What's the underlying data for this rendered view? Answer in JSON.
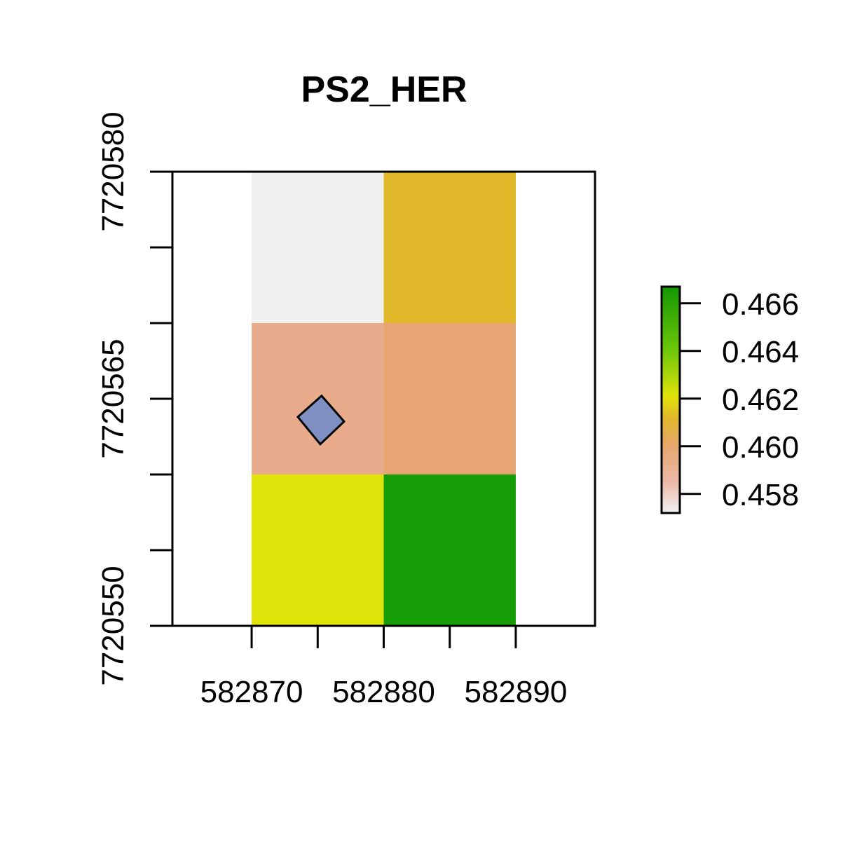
{
  "chart_data": {
    "type": "heatmap",
    "title": "PS2_HER",
    "xlabel": "",
    "ylabel": "",
    "xlim": [
      582864,
      582896
    ],
    "ylim": [
      7720550,
      7720580
    ],
    "x_ticks": [
      582870,
      582875,
      582880,
      582885,
      582890
    ],
    "x_tick_labels": [
      "582870",
      "582880",
      "582890"
    ],
    "x_tick_labels_at": [
      582870,
      582880,
      582890
    ],
    "y_ticks": [
      7720550,
      7720555,
      7720560,
      7720565,
      7720570,
      7720575,
      7720580
    ],
    "y_tick_labels": [
      "7720550",
      "7720565",
      "7720580"
    ],
    "y_tick_labels_at": [
      7720550,
      7720565,
      7720580
    ],
    "grid": false,
    "cells": [
      {
        "x0": 582870,
        "x1": 582880,
        "y0": 7720570,
        "y1": 7720580,
        "value": 0.4573,
        "color": "#EFEFEF"
      },
      {
        "x0": 582880,
        "x1": 582890,
        "y0": 7720570,
        "y1": 7720580,
        "value": 0.4613,
        "color": "#E0B82A"
      },
      {
        "x0": 582870,
        "x1": 582880,
        "y0": 7720560,
        "y1": 7720570,
        "value": 0.4588,
        "color": "#E8AB8C"
      },
      {
        "x0": 582880,
        "x1": 582890,
        "y0": 7720560,
        "y1": 7720570,
        "value": 0.4598,
        "color": "#E6A572"
      },
      {
        "x0": 582870,
        "x1": 582880,
        "y0": 7720550,
        "y1": 7720560,
        "value": 0.4621,
        "color": "#E0E30A"
      },
      {
        "x0": 582880,
        "x1": 582890,
        "y0": 7720550,
        "y1": 7720560,
        "value": 0.4664,
        "color": "#169C04"
      }
    ],
    "polygon": {
      "fill": "#7F8FC1",
      "points": [
        [
          582875.3,
          7720565.2
        ],
        [
          582877.0,
          7720563.5
        ],
        [
          582875.2,
          7720562.0
        ],
        [
          582873.5,
          7720563.8
        ]
      ]
    },
    "legend": {
      "placement": "right",
      "range": [
        0.4572,
        0.4667
      ],
      "ticks": [
        0.458,
        0.46,
        0.462,
        0.464,
        0.466
      ],
      "tick_labels": [
        "0.458",
        "0.460",
        "0.462",
        "0.464",
        "0.466"
      ],
      "gradient_stops": [
        {
          "value": 0.4572,
          "color": "#F2F2F2"
        },
        {
          "value": 0.4585,
          "color": "#EBB9A8"
        },
        {
          "value": 0.46,
          "color": "#E6A66E"
        },
        {
          "value": 0.4612,
          "color": "#E0B82A"
        },
        {
          "value": 0.4621,
          "color": "#E0E30A"
        },
        {
          "value": 0.464,
          "color": "#6EC80A"
        },
        {
          "value": 0.4667,
          "color": "#129603"
        }
      ]
    }
  }
}
